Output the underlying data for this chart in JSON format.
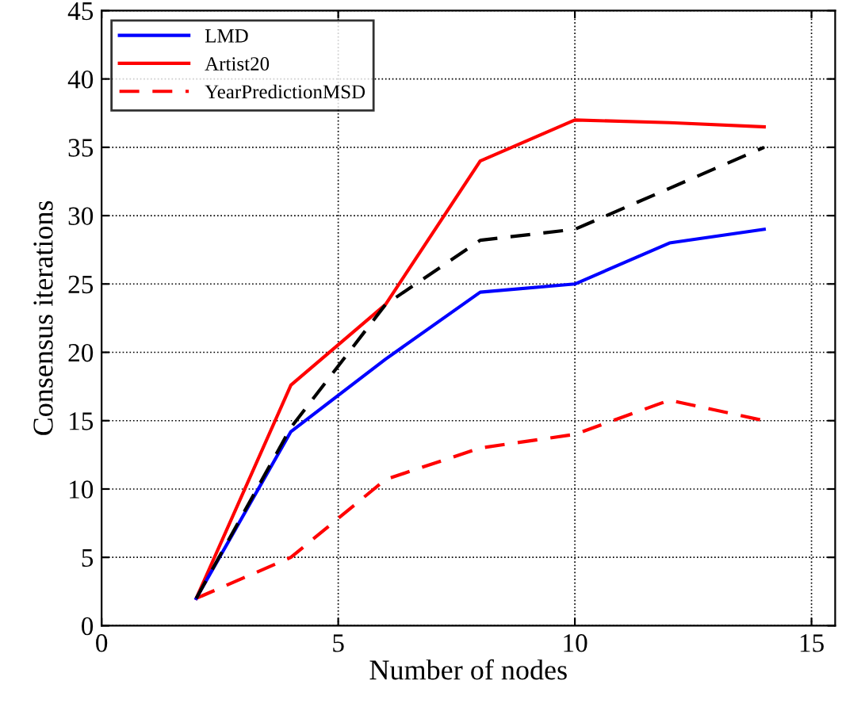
{
  "chart_data": {
    "type": "line",
    "xlabel": "Number of nodes",
    "ylabel": "Consensus iterations",
    "x": [
      2,
      4,
      6,
      8,
      10,
      12,
      14
    ],
    "series": [
      {
        "color": "#000000",
        "line_style": "dashed",
        "values": [
          2,
          14.5,
          23.5,
          28.2,
          29,
          32,
          35
        ]
      },
      {
        "name": "LMD",
        "color": "#0000ff",
        "line_style": "solid",
        "values": [
          2,
          14.2,
          19.5,
          24.4,
          25,
          28,
          29
        ]
      },
      {
        "name": "Artist20",
        "color": "#ff0000",
        "line_style": "solid",
        "values": [
          2,
          17.6,
          23.5,
          34,
          37,
          36.8,
          36.5
        ]
      },
      {
        "name": "YearPredictionMSD",
        "color": "#ff0000",
        "line_style": "dashed",
        "values": [
          2,
          5,
          10.7,
          13,
          14,
          16.5,
          15
        ]
      }
    ],
    "xlim": [
      0,
      15.5
    ],
    "ylim": [
      0,
      45
    ],
    "xticks": [
      0,
      5,
      10,
      15
    ],
    "yticks": [
      0,
      5,
      10,
      15,
      20,
      25,
      30,
      35,
      40,
      45
    ],
    "grid": true,
    "legend": "top left",
    "marker": "none"
  }
}
